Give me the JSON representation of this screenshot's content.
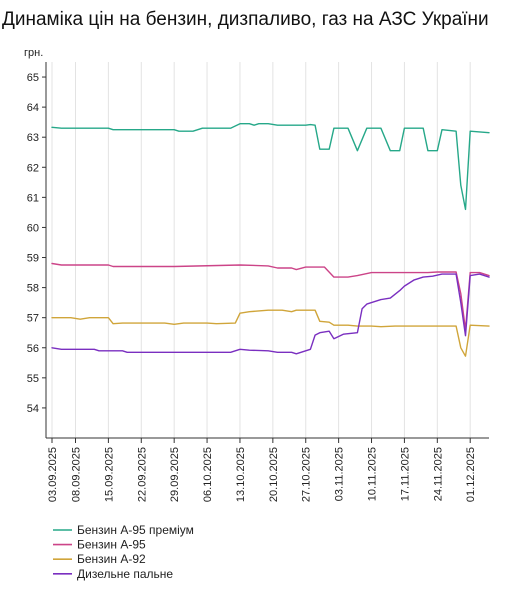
{
  "chart_data": {
    "type": "line",
    "title": "Динаміка цін на бензин, дизпаливо, газ на АЗС України",
    "ylabel": "грн.",
    "xlabel": "",
    "ylim": [
      53,
      65.5
    ],
    "yticks": [
      54,
      55,
      56,
      57,
      58,
      59,
      60,
      61,
      62,
      63,
      64,
      65
    ],
    "x_range": [
      "2025-09-03",
      "2025-12-05"
    ],
    "x_ticks": [
      "03.09.2025",
      "08.09.2025",
      "15.09.2025",
      "22.09.2025",
      "29.09.2025",
      "06.10.2025",
      "13.10.2025",
      "20.10.2025",
      "27.10.2025",
      "03.11.2025",
      "10.11.2025",
      "17.11.2025",
      "24.11.2025",
      "01.12.2025"
    ],
    "grid": "vertical",
    "legend_position": "bottom-left",
    "series": [
      {
        "name": "Бензин А-95 преміум",
        "color": "#26a889",
        "points": [
          [
            "2025-09-03",
            63.33
          ],
          [
            "2025-09-05",
            63.3
          ],
          [
            "2025-09-15",
            63.3
          ],
          [
            "2025-09-16",
            63.25
          ],
          [
            "2025-09-29",
            63.25
          ],
          [
            "2025-09-30",
            63.2
          ],
          [
            "2025-10-03",
            63.2
          ],
          [
            "2025-10-05",
            63.3
          ],
          [
            "2025-10-11",
            63.3
          ],
          [
            "2025-10-13",
            63.45
          ],
          [
            "2025-10-15",
            63.45
          ],
          [
            "2025-10-16",
            63.4
          ],
          [
            "2025-10-17",
            63.45
          ],
          [
            "2025-10-19",
            63.45
          ],
          [
            "2025-10-21",
            63.4
          ],
          [
            "2025-10-27",
            63.4
          ],
          [
            "2025-10-28",
            63.42
          ],
          [
            "2025-10-29",
            63.4
          ],
          [
            "2025-10-30",
            62.6
          ],
          [
            "2025-11-01",
            62.6
          ],
          [
            "2025-11-02",
            63.3
          ],
          [
            "2025-11-05",
            63.3
          ],
          [
            "2025-11-07",
            62.55
          ],
          [
            "2025-11-09",
            63.3
          ],
          [
            "2025-11-12",
            63.3
          ],
          [
            "2025-11-14",
            62.55
          ],
          [
            "2025-11-16",
            62.55
          ],
          [
            "2025-11-17",
            63.3
          ],
          [
            "2025-11-21",
            63.3
          ],
          [
            "2025-11-22",
            62.55
          ],
          [
            "2025-11-24",
            62.55
          ],
          [
            "2025-11-25",
            63.25
          ],
          [
            "2025-11-28",
            63.2
          ],
          [
            "2025-11-29",
            61.4
          ],
          [
            "2025-11-30",
            60.6
          ],
          [
            "2025-12-01",
            63.2
          ],
          [
            "2025-12-05",
            63.15
          ]
        ]
      },
      {
        "name": "Бензин А-95",
        "color": "#cc4488",
        "points": [
          [
            "2025-09-03",
            58.8
          ],
          [
            "2025-09-05",
            58.75
          ],
          [
            "2025-09-15",
            58.75
          ],
          [
            "2025-09-16",
            58.7
          ],
          [
            "2025-09-29",
            58.7
          ],
          [
            "2025-10-13",
            58.75
          ],
          [
            "2025-10-19",
            58.72
          ],
          [
            "2025-10-21",
            58.65
          ],
          [
            "2025-10-24",
            58.65
          ],
          [
            "2025-10-25",
            58.6
          ],
          [
            "2025-10-27",
            58.68
          ],
          [
            "2025-10-31",
            58.68
          ],
          [
            "2025-11-02",
            58.35
          ],
          [
            "2025-11-05",
            58.35
          ],
          [
            "2025-11-07",
            58.4
          ],
          [
            "2025-11-10",
            58.5
          ],
          [
            "2025-11-22",
            58.5
          ],
          [
            "2025-11-24",
            58.52
          ],
          [
            "2025-11-28",
            58.52
          ],
          [
            "2025-11-29",
            57.8
          ],
          [
            "2025-11-30",
            56.6
          ],
          [
            "2025-12-01",
            58.5
          ],
          [
            "2025-12-03",
            58.5
          ],
          [
            "2025-12-05",
            58.4
          ]
        ]
      },
      {
        "name": "Бензин А-92",
        "color": "#d0a53a",
        "points": [
          [
            "2025-09-03",
            57.0
          ],
          [
            "2025-09-07",
            57.0
          ],
          [
            "2025-09-09",
            56.95
          ],
          [
            "2025-09-11",
            57.0
          ],
          [
            "2025-09-15",
            57.0
          ],
          [
            "2025-09-16",
            56.8
          ],
          [
            "2025-09-18",
            56.82
          ],
          [
            "2025-09-27",
            56.82
          ],
          [
            "2025-09-29",
            56.78
          ],
          [
            "2025-10-01",
            56.82
          ],
          [
            "2025-10-06",
            56.82
          ],
          [
            "2025-10-08",
            56.8
          ],
          [
            "2025-10-12",
            56.82
          ],
          [
            "2025-10-13",
            57.15
          ],
          [
            "2025-10-15",
            57.2
          ],
          [
            "2025-10-19",
            57.25
          ],
          [
            "2025-10-22",
            57.25
          ],
          [
            "2025-10-24",
            57.2
          ],
          [
            "2025-10-25",
            57.25
          ],
          [
            "2025-10-29",
            57.25
          ],
          [
            "2025-10-30",
            56.88
          ],
          [
            "2025-11-01",
            56.85
          ],
          [
            "2025-11-02",
            56.75
          ],
          [
            "2025-11-05",
            56.75
          ],
          [
            "2025-11-07",
            56.72
          ],
          [
            "2025-11-10",
            56.72
          ],
          [
            "2025-11-12",
            56.7
          ],
          [
            "2025-11-15",
            56.72
          ],
          [
            "2025-11-22",
            56.72
          ],
          [
            "2025-11-28",
            56.72
          ],
          [
            "2025-11-29",
            56.0
          ],
          [
            "2025-11-30",
            55.72
          ],
          [
            "2025-12-01",
            56.75
          ],
          [
            "2025-12-05",
            56.72
          ]
        ]
      },
      {
        "name": "Дизельне пальне",
        "color": "#7a2fc0",
        "points": [
          [
            "2025-09-03",
            56.0
          ],
          [
            "2025-09-05",
            55.95
          ],
          [
            "2025-09-12",
            55.95
          ],
          [
            "2025-09-13",
            55.9
          ],
          [
            "2025-09-18",
            55.9
          ],
          [
            "2025-09-19",
            55.85
          ],
          [
            "2025-10-11",
            55.85
          ],
          [
            "2025-10-13",
            55.95
          ],
          [
            "2025-10-15",
            55.92
          ],
          [
            "2025-10-19",
            55.9
          ],
          [
            "2025-10-21",
            55.85
          ],
          [
            "2025-10-24",
            55.85
          ],
          [
            "2025-10-25",
            55.8
          ],
          [
            "2025-10-27",
            55.9
          ],
          [
            "2025-10-28",
            55.95
          ],
          [
            "2025-10-29",
            56.42
          ],
          [
            "2025-10-30",
            56.5
          ],
          [
            "2025-11-01",
            56.55
          ],
          [
            "2025-11-02",
            56.3
          ],
          [
            "2025-11-04",
            56.45
          ],
          [
            "2025-11-07",
            56.5
          ],
          [
            "2025-11-08",
            57.3
          ],
          [
            "2025-11-09",
            57.45
          ],
          [
            "2025-11-12",
            57.6
          ],
          [
            "2025-11-14",
            57.65
          ],
          [
            "2025-11-16",
            57.9
          ],
          [
            "2025-11-17",
            58.05
          ],
          [
            "2025-11-19",
            58.25
          ],
          [
            "2025-11-21",
            58.35
          ],
          [
            "2025-11-23",
            58.38
          ],
          [
            "2025-11-25",
            58.45
          ],
          [
            "2025-11-28",
            58.45
          ],
          [
            "2025-11-29",
            57.5
          ],
          [
            "2025-11-30",
            56.4
          ],
          [
            "2025-12-01",
            58.4
          ],
          [
            "2025-12-03",
            58.45
          ],
          [
            "2025-12-05",
            58.35
          ]
        ]
      }
    ]
  }
}
